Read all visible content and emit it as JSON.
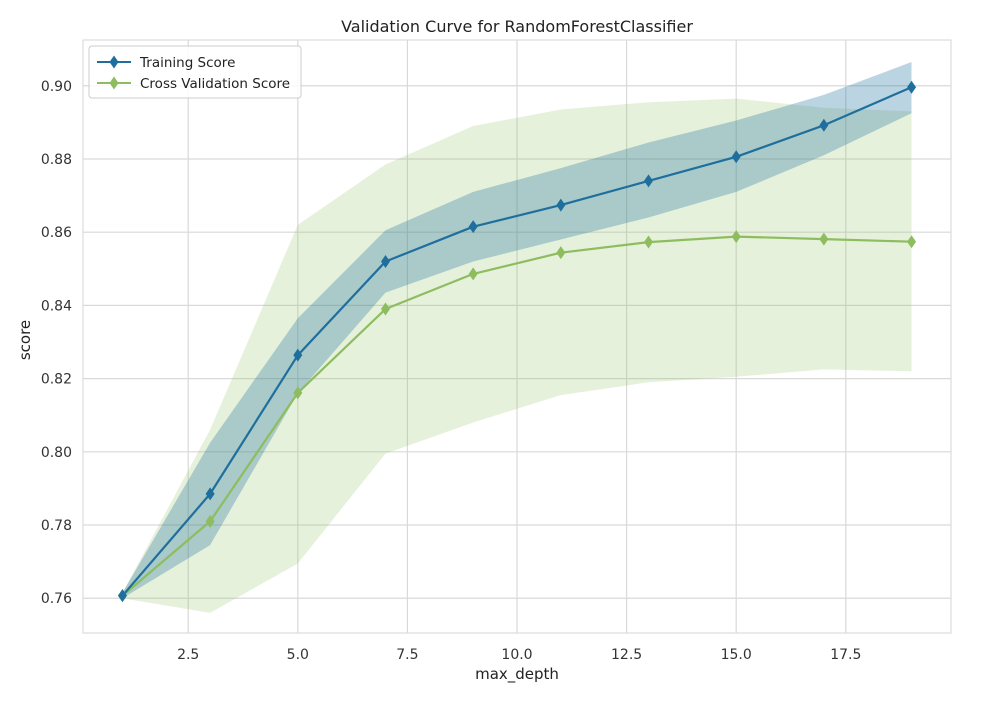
{
  "chart_data": {
    "type": "line",
    "title": "Validation Curve for RandomForestClassifier",
    "xlabel": "max_depth",
    "ylabel": "score",
    "xlim": [
      0.1,
      19.9
    ],
    "ylim": [
      0.7505,
      0.9125
    ],
    "xticks": [
      "2.5",
      "5.0",
      "7.5",
      "10.0",
      "12.5",
      "15.0",
      "17.5"
    ],
    "yticks": [
      "0.76",
      "0.78",
      "0.80",
      "0.82",
      "0.84",
      "0.86",
      "0.88",
      "0.90"
    ],
    "grid": true,
    "legend_position": "top-left",
    "x": [
      1,
      3,
      5,
      7,
      9,
      11,
      13,
      15,
      17,
      19
    ],
    "series": [
      {
        "name": "Training Score",
        "color": "#1f6f9e",
        "values": [
          0.7607,
          0.7885,
          0.8264,
          0.852,
          0.8615,
          0.8674,
          0.874,
          0.8806,
          0.8892,
          0.8996
        ],
        "lower": [
          0.76,
          0.7745,
          0.816,
          0.8435,
          0.852,
          0.858,
          0.864,
          0.871,
          0.881,
          0.8925
        ],
        "upper": [
          0.7615,
          0.8025,
          0.8365,
          0.8605,
          0.871,
          0.8775,
          0.8845,
          0.8905,
          0.8975,
          0.9065
        ]
      },
      {
        "name": "Cross Validation Score",
        "color": "#8dbd5e",
        "values": [
          0.7607,
          0.781,
          0.8161,
          0.839,
          0.8486,
          0.8544,
          0.8573,
          0.8588,
          0.8581,
          0.8574
        ],
        "lower": [
          0.76,
          0.756,
          0.7695,
          0.7995,
          0.808,
          0.8155,
          0.819,
          0.8205,
          0.8225,
          0.822
        ],
        "upper": [
          0.7615,
          0.806,
          0.862,
          0.8785,
          0.889,
          0.8935,
          0.8955,
          0.8965,
          0.894,
          0.893
        ]
      }
    ]
  }
}
